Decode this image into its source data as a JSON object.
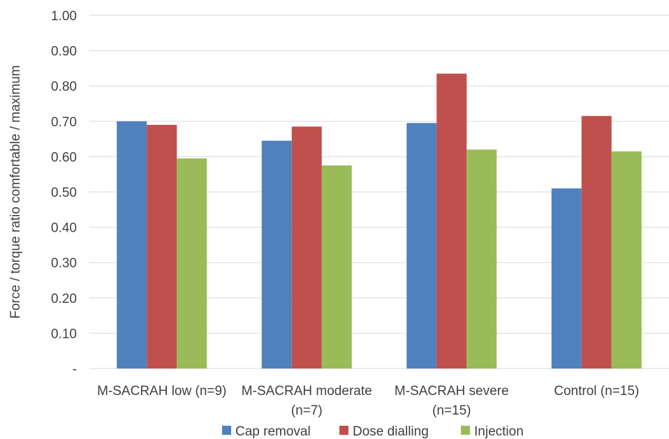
{
  "chart_data": {
    "type": "bar",
    "title": "",
    "xlabel": "",
    "ylabel": "Force / torque ratio comfortable / maximum",
    "ylim": [
      0,
      1.0
    ],
    "yticks": [
      0,
      0.1,
      0.2,
      0.3,
      0.4,
      0.5,
      0.6,
      0.7,
      0.8,
      0.9,
      1.0
    ],
    "ytick_labels": [
      "-",
      "0.10",
      "0.20",
      "0.30",
      "0.40",
      "0.50",
      "0.60",
      "0.70",
      "0.80",
      "0.90",
      "1.00"
    ],
    "categories": [
      [
        "M-SACRAH low (n=9)"
      ],
      [
        "M-SACRAH moderate",
        "(n=7)"
      ],
      [
        "M-SACRAH severe",
        "(n=15)"
      ],
      [
        "Control (n=15)"
      ]
    ],
    "series": [
      {
        "name": "Cap removal",
        "color": "#4f81bd",
        "values": [
          0.7,
          0.645,
          0.695,
          0.51
        ]
      },
      {
        "name": "Dose dialling",
        "color": "#c0504d",
        "values": [
          0.69,
          0.685,
          0.835,
          0.715
        ]
      },
      {
        "name": "Injection",
        "color": "#9bbb59",
        "values": [
          0.595,
          0.575,
          0.62,
          0.615
        ]
      }
    ],
    "grid": true,
    "legend_position": "bottom"
  }
}
